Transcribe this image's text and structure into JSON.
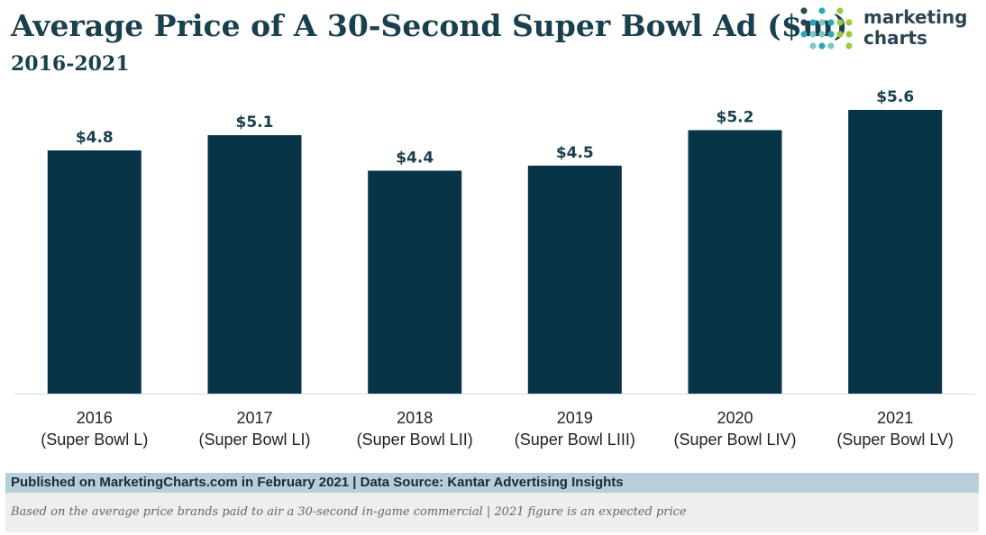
{
  "header": {
    "title": "Average Price of A 30-Second Super Bowl Ad ($m)",
    "subtitle": "2016-2021"
  },
  "logo": {
    "line1": "marketing",
    "line2": "charts",
    "icon": "dot-grid-logo-icon",
    "colors": [
      "#2d4654",
      "#2aa8b8",
      "#7ec8c1",
      "#9ccc3c"
    ]
  },
  "colors": {
    "bar": "#073446",
    "text_dark": "#19404d",
    "axis": "#d6dde1",
    "footer_bar": "#b7cfdb",
    "note_box": "#eeeeee"
  },
  "chart_data": {
    "type": "bar",
    "categories": [
      [
        "2016",
        "(Super Bowl L)"
      ],
      [
        "2017",
        "(Super Bowl LI)"
      ],
      [
        "2018",
        "(Super Bowl LII)"
      ],
      [
        "2019",
        "(Super Bowl LIII)"
      ],
      [
        "2020",
        "(Super Bowl LIV)"
      ],
      [
        "2021",
        "(Super Bowl LV)"
      ]
    ],
    "values": [
      4.8,
      5.1,
      4.4,
      4.5,
      5.2,
      5.6
    ],
    "data_labels": [
      "$4.8",
      "$5.1",
      "$4.4",
      "$4.5",
      "$5.2",
      "$5.6"
    ],
    "title": "Average Price of A 30-Second Super Bowl Ad ($m)",
    "subtitle": "2016-2021",
    "xlabel": "",
    "ylabel": "",
    "ylim": [
      0,
      5.6
    ],
    "grid": false,
    "legend": "none"
  },
  "footer": {
    "source": "Published on MarketingCharts.com in February 2021 | Data Source: Kantar Advertising Insights",
    "note": "Based on the average price brands paid to air a 30-second in-game commercial | 2021 figure is an expected price"
  }
}
